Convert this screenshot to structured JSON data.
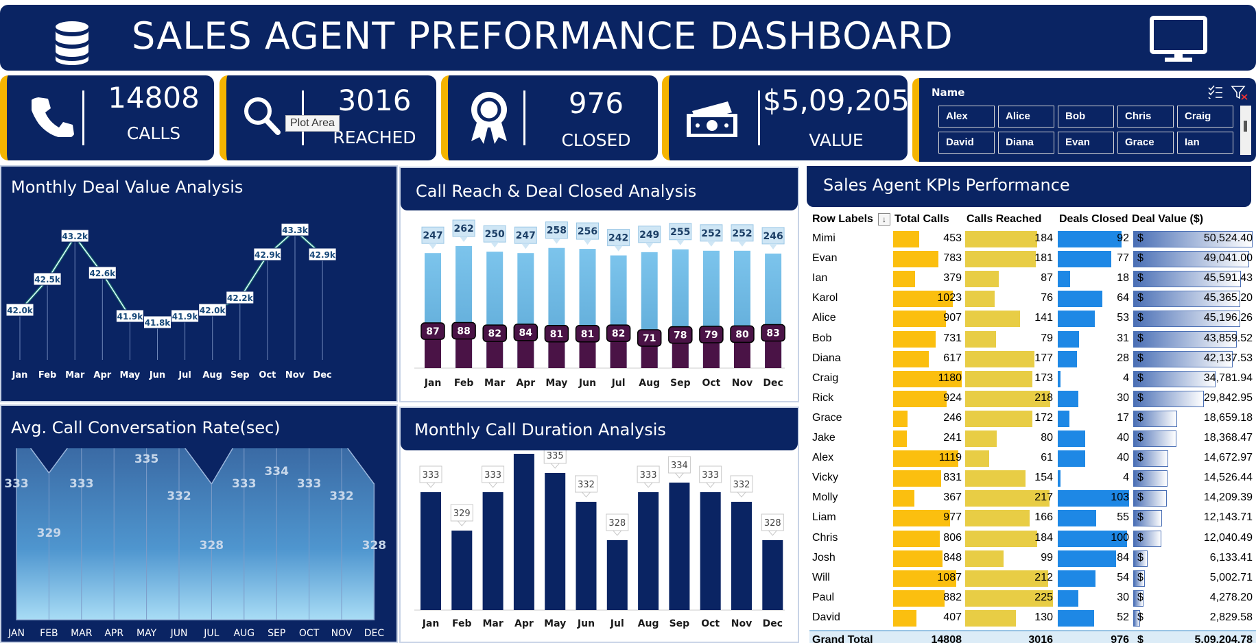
{
  "header": {
    "title": "SALES AGENT PREFORMANCE DASHBOARD"
  },
  "kpis": {
    "calls": {
      "value": "14808",
      "label": "CALLS"
    },
    "reached": {
      "value": "3016",
      "label": "REACHED"
    },
    "closed": {
      "value": "976",
      "label": "CLOSED"
    },
    "value": {
      "value": "$5,09,205",
      "label": "VALUE"
    }
  },
  "tooltip": "Plot Area",
  "slicer": {
    "title": "Name",
    "items": [
      "Alex",
      "Alice",
      "Bob",
      "Chris",
      "Craig",
      "David",
      "Diana",
      "Evan",
      "Grace",
      "Ian"
    ]
  },
  "panels": {
    "monthly_deal": "Monthly Deal Value Analysis",
    "call_reach": "Call Reach & Deal Closed Analysis",
    "kpi_perf": "Sales Agent KPIs Performance",
    "avg_call": "Avg. Call Conversation Rate(sec)",
    "call_duration": "Monthly Call Duration Analysis"
  },
  "chart_data": [
    {
      "type": "line",
      "title": "Monthly Deal Value Analysis",
      "categories": [
        "Jan",
        "Feb",
        "Mar",
        "Apr",
        "May",
        "Jun",
        "Jul",
        "Aug",
        "Sep",
        "Oct",
        "Nov",
        "Dec"
      ],
      "values": [
        42.0,
        42.5,
        43.2,
        42.6,
        41.9,
        41.8,
        41.9,
        42.0,
        42.2,
        42.9,
        43.3,
        42.9
      ],
      "labels": [
        "42.0k",
        "42.5k",
        "43.2k",
        "42.6k",
        "41.9k",
        "41.8k",
        "41.9k",
        "42.0k",
        "42.2k",
        "42.9k",
        "43.3k",
        "42.9k"
      ]
    },
    {
      "type": "bar",
      "title": "Call Reach & Deal Closed Analysis",
      "categories": [
        "Jan",
        "Feb",
        "Mar",
        "Apr",
        "May",
        "Jun",
        "Jul",
        "Aug",
        "Sep",
        "Oct",
        "Nov",
        "Dec"
      ],
      "series": [
        {
          "values": [
            247,
            262,
            250,
            247,
            258,
            256,
            242,
            249,
            255,
            252,
            252,
            246
          ]
        },
        {
          "values": [
            87,
            88,
            82,
            84,
            81,
            81,
            82,
            71,
            78,
            79,
            80,
            83
          ]
        }
      ]
    },
    {
      "type": "area",
      "title": "Avg. Call Conversation Rate(sec)",
      "categories": [
        "JAN",
        "FEB",
        "MAR",
        "APR",
        "MAY",
        "JUN",
        "JUL",
        "AUG",
        "SEP",
        "OCT",
        "NOV",
        "DEC"
      ],
      "values": [
        333,
        329,
        333,
        337,
        335,
        332,
        328,
        333,
        334,
        333,
        332,
        328
      ]
    },
    {
      "type": "bar",
      "title": "Monthly Call Duration Analysis",
      "categories": [
        "Jan",
        "Feb",
        "Mar",
        "Apr",
        "May",
        "Jun",
        "Jul",
        "Aug",
        "Sep",
        "Oct",
        "Nov",
        "Dec"
      ],
      "values": [
        333,
        329,
        333,
        337,
        335,
        332,
        328,
        333,
        334,
        333,
        332,
        328
      ]
    },
    {
      "type": "table",
      "title": "Sales Agent KPIs Performance",
      "columns": [
        "Row Labels",
        "Total Calls",
        "Calls Reached",
        "Deals Closed",
        "Deal Value ($)"
      ],
      "rows": [
        [
          "Mimi",
          453,
          184,
          92,
          "50,524.40",
          50524.4
        ],
        [
          "Evan",
          783,
          181,
          77,
          "49,041.00",
          49041.0
        ],
        [
          "Ian",
          379,
          87,
          18,
          "45,591.43",
          45591.43
        ],
        [
          "Karol",
          1023,
          76,
          64,
          "45,365.20",
          45365.2
        ],
        [
          "Alice",
          907,
          141,
          53,
          "45,196.26",
          45196.26
        ],
        [
          "Bob",
          731,
          79,
          31,
          "43,859.52",
          43859.52
        ],
        [
          "Diana",
          617,
          177,
          28,
          "42,137.53",
          42137.53
        ],
        [
          "Craig",
          1180,
          173,
          4,
          "34,781.94",
          34781.94
        ],
        [
          "Rick",
          924,
          218,
          30,
          "29,842.95",
          29842.95
        ],
        [
          "Grace",
          246,
          172,
          17,
          "18,659.18",
          18659.18
        ],
        [
          "Jake",
          241,
          80,
          40,
          "18,368.47",
          18368.47
        ],
        [
          "Alex",
          1119,
          61,
          40,
          "14,672.97",
          14672.97
        ],
        [
          "Vicky",
          831,
          154,
          4,
          "14,526.44",
          14526.44
        ],
        [
          "Molly",
          367,
          217,
          103,
          "14,209.39",
          14209.39
        ],
        [
          "Liam",
          977,
          166,
          55,
          "12,143.71",
          12143.71
        ],
        [
          "Chris",
          806,
          184,
          100,
          "12,040.49",
          12040.49
        ],
        [
          "Josh",
          848,
          99,
          84,
          "6,133.41",
          6133.41
        ],
        [
          "Will",
          1087,
          212,
          54,
          "5,002.71",
          5002.71
        ],
        [
          "Paul",
          882,
          225,
          30,
          "4,278.20",
          4278.2
        ],
        [
          "David",
          407,
          130,
          52,
          "2,829.58",
          2829.58
        ]
      ],
      "grand_total": [
        "Grand Total",
        "14808",
        "3016",
        "976",
        "5,09,204.78"
      ]
    }
  ],
  "table_labels": {
    "currency": "$"
  },
  "colors": {
    "navy": "#0a2463",
    "gold": "#f5b400",
    "calls_bar": "#fbbf0f",
    "reached_bar": "#e8cd45",
    "closed_bar": "#1e88e5",
    "value_bar": "#4a6fb5",
    "reach_bar": "#6fb7e0",
    "closed_col": "#4a1346",
    "duration_bar": "#0a2463"
  }
}
